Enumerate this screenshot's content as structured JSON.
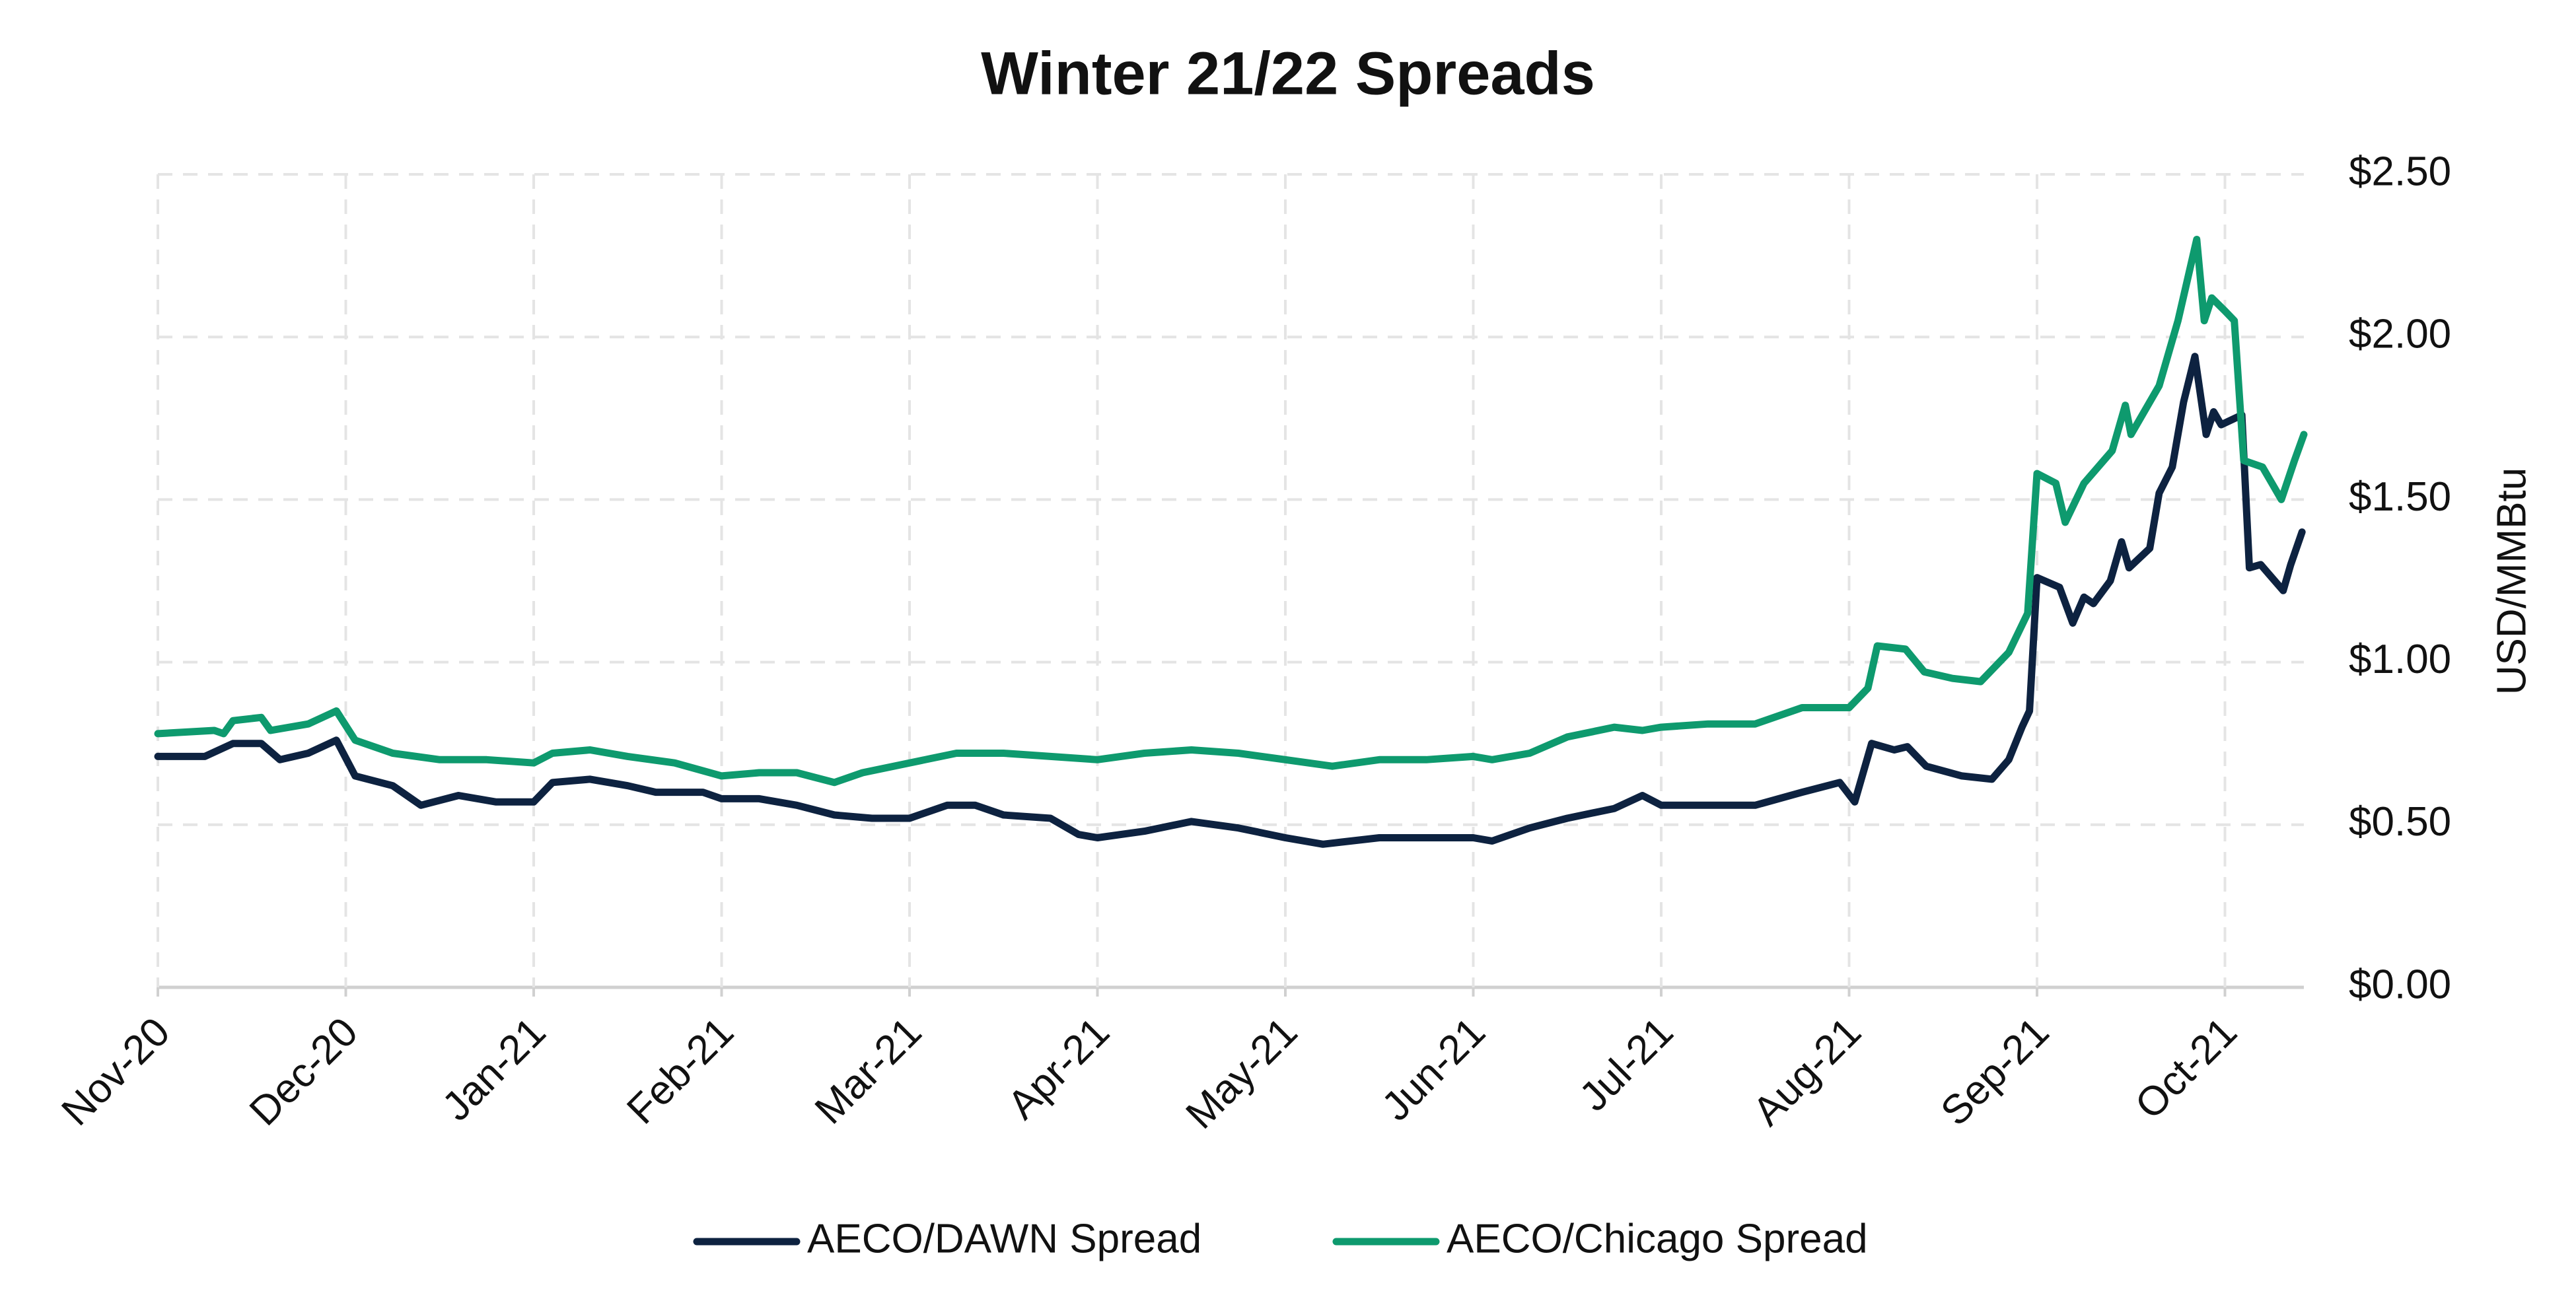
{
  "chart_data": {
    "type": "line",
    "title": "Winter 21/22 Spreads",
    "y_label": "USD/MMBtu",
    "xlim": [
      0,
      11.42
    ],
    "xticks": [
      {
        "value": 0,
        "label": "Nov-20"
      },
      {
        "value": 1,
        "label": "Dec-20"
      },
      {
        "value": 2,
        "label": "Jan-21"
      },
      {
        "value": 3,
        "label": "Feb-21"
      },
      {
        "value": 4,
        "label": "Mar-21"
      },
      {
        "value": 5,
        "label": "Apr-21"
      },
      {
        "value": 6,
        "label": "May-21"
      },
      {
        "value": 7,
        "label": "Jun-21"
      },
      {
        "value": 8,
        "label": "Jul-21"
      },
      {
        "value": 9,
        "label": "Aug-21"
      },
      {
        "value": 10,
        "label": "Sep-21"
      },
      {
        "value": 11,
        "label": "Oct-21"
      }
    ],
    "ylim": [
      0,
      2.5
    ],
    "yticks": [
      {
        "value": 0,
        "label": "$0.00"
      },
      {
        "value": 0.5,
        "label": "$0.50"
      },
      {
        "value": 1,
        "label": "$1.00"
      },
      {
        "value": 1.5,
        "label": "$1.50"
      },
      {
        "value": 2,
        "label": "$2.00"
      },
      {
        "value": 2.5,
        "label": "$2.50"
      }
    ],
    "grid": true,
    "legend": "bottom",
    "series": [
      {
        "name": "AECO/DAWN Spread",
        "color": "#0d2240",
        "x": [
          0,
          0.25,
          0.4,
          0.55,
          0.65,
          0.8,
          0.95,
          1.05,
          1.25,
          1.4,
          1.6,
          1.8,
          2.0,
          2.1,
          2.3,
          2.5,
          2.65,
          2.9,
          3.0,
          3.2,
          3.4,
          3.6,
          3.8,
          4.0,
          4.2,
          4.35,
          4.5,
          4.75,
          4.9,
          5.0,
          5.25,
          5.5,
          5.75,
          6.0,
          6.2,
          6.5,
          6.75,
          7.0,
          7.1,
          7.3,
          7.5,
          7.75,
          7.9,
          8.0,
          8.2,
          8.5,
          8.75,
          8.95,
          9.03,
          9.12,
          9.24,
          9.31,
          9.41,
          9.6,
          9.76,
          9.85,
          9.92,
          9.96,
          10.0,
          10.12,
          10.19,
          10.25,
          10.3,
          10.39,
          10.45,
          10.49,
          10.6,
          10.65,
          10.72,
          10.78,
          10.84,
          10.9,
          10.94,
          10.98,
          11.09,
          11.13,
          11.19,
          11.31,
          11.35,
          11.41
        ],
        "values": [
          0.71,
          0.71,
          0.75,
          0.75,
          0.7,
          0.72,
          0.76,
          0.65,
          0.62,
          0.56,
          0.59,
          0.57,
          0.57,
          0.63,
          0.64,
          0.62,
          0.6,
          0.6,
          0.58,
          0.58,
          0.56,
          0.53,
          0.52,
          0.52,
          0.56,
          0.56,
          0.53,
          0.52,
          0.47,
          0.46,
          0.48,
          0.51,
          0.49,
          0.46,
          0.44,
          0.46,
          0.46,
          0.46,
          0.45,
          0.49,
          0.52,
          0.55,
          0.59,
          0.56,
          0.56,
          0.56,
          0.6,
          0.63,
          0.57,
          0.75,
          0.73,
          0.74,
          0.68,
          0.65,
          0.64,
          0.7,
          0.8,
          0.85,
          1.26,
          1.23,
          1.12,
          1.2,
          1.18,
          1.25,
          1.37,
          1.29,
          1.35,
          1.52,
          1.6,
          1.8,
          1.94,
          1.7,
          1.77,
          1.73,
          1.76,
          1.29,
          1.3,
          1.22,
          1.3,
          1.4
        ]
      },
      {
        "name": "AECO/Chicago Spread",
        "color": "#0e9a6e",
        "x": [
          0,
          0.3,
          0.35,
          0.4,
          0.55,
          0.6,
          0.8,
          0.95,
          1.05,
          1.25,
          1.5,
          1.75,
          2.0,
          2.1,
          2.3,
          2.5,
          2.75,
          3.0,
          3.2,
          3.4,
          3.6,
          3.75,
          4.0,
          4.25,
          4.5,
          4.75,
          5.0,
          5.25,
          5.5,
          5.75,
          6.0,
          6.25,
          6.5,
          6.75,
          7.0,
          7.1,
          7.3,
          7.5,
          7.75,
          7.9,
          8.0,
          8.25,
          8.5,
          8.75,
          9.0,
          9.1,
          9.15,
          9.3,
          9.4,
          9.55,
          9.7,
          9.85,
          9.95,
          10.0,
          10.1,
          10.15,
          10.25,
          10.4,
          10.47,
          10.5,
          10.65,
          10.75,
          10.85,
          10.89,
          10.93,
          11.0,
          11.05,
          11.1,
          11.2,
          11.3,
          11.37,
          11.42
        ],
        "values": [
          0.78,
          0.79,
          0.78,
          0.82,
          0.83,
          0.79,
          0.81,
          0.85,
          0.76,
          0.72,
          0.7,
          0.7,
          0.69,
          0.72,
          0.73,
          0.71,
          0.69,
          0.65,
          0.66,
          0.66,
          0.63,
          0.66,
          0.69,
          0.72,
          0.72,
          0.71,
          0.7,
          0.72,
          0.73,
          0.72,
          0.7,
          0.68,
          0.7,
          0.7,
          0.71,
          0.7,
          0.72,
          0.77,
          0.8,
          0.79,
          0.8,
          0.81,
          0.81,
          0.86,
          0.86,
          0.92,
          1.05,
          1.04,
          0.97,
          0.95,
          0.94,
          1.03,
          1.15,
          1.58,
          1.55,
          1.43,
          1.55,
          1.65,
          1.79,
          1.7,
          1.85,
          2.05,
          2.3,
          2.05,
          2.12,
          2.08,
          2.05,
          1.62,
          1.6,
          1.5,
          1.62,
          1.7
        ]
      }
    ]
  }
}
